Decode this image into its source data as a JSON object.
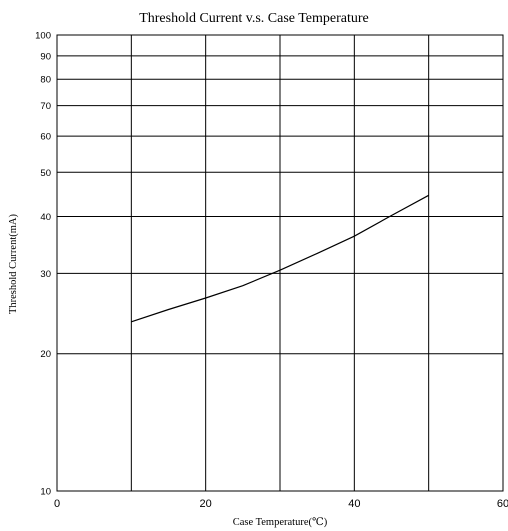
{
  "chart_data": {
    "type": "line",
    "title": "Threshold Current v.s. Case Temperature",
    "xlabel": "Case Temperature(℃)",
    "ylabel": "Threshold Current(mA)",
    "xlim": [
      0,
      60
    ],
    "ylim": [
      10,
      100
    ],
    "yscale": "log",
    "grid": true,
    "x_ticks": [
      {
        "value": 0,
        "label": "0"
      },
      {
        "value": 20,
        "label": "20"
      },
      {
        "value": 40,
        "label": "40"
      },
      {
        "value": 60,
        "label": "60"
      }
    ],
    "x_gridlines": [
      10,
      20,
      30,
      40,
      50
    ],
    "y_ticks": [
      {
        "value": 10,
        "label": "10"
      },
      {
        "value": 20,
        "label": "20"
      },
      {
        "value": 30,
        "label": "30"
      },
      {
        "value": 40,
        "label": "40"
      },
      {
        "value": 50,
        "label": "50"
      },
      {
        "value": 60,
        "label": "60"
      },
      {
        "value": 70,
        "label": "70"
      },
      {
        "value": 80,
        "label": "80"
      },
      {
        "value": 90,
        "label": "90"
      },
      {
        "value": 100,
        "label": "100"
      }
    ],
    "series": [
      {
        "x": [
          10,
          15,
          20,
          25,
          30,
          35,
          40,
          45,
          50
        ],
        "y": [
          23.5,
          25,
          26.5,
          28.2,
          30.5,
          33.2,
          36.2,
          40.2,
          44.5
        ]
      }
    ]
  }
}
